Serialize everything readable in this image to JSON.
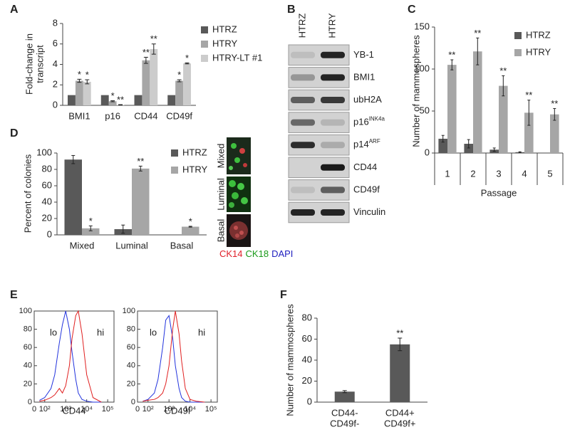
{
  "panel_labels": [
    "A",
    "B",
    "C",
    "D",
    "E",
    "F"
  ],
  "chart_data": [
    {
      "type": "bar",
      "y_label": [
        "Fold-change in",
        "transcript"
      ],
      "categories": [
        "BMI1",
        "p16",
        "CD44",
        "CD49f"
      ],
      "series": [
        {
          "name": "HTRZ",
          "color": "#595959",
          "values": [
            1,
            1,
            1,
            1
          ]
        },
        {
          "name": "HTRY",
          "color": "#a6a6a6",
          "values": [
            2.4,
            0.4,
            4.4,
            2.4
          ],
          "errors": [
            0.15,
            0.05,
            0.3,
            0.1
          ],
          "significance": [
            "*",
            "*",
            "**",
            "*"
          ]
        },
        {
          "name": "HTRY-LT #1",
          "color": "#cccccc",
          "values": [
            2.3,
            0.05,
            5.5,
            4.1
          ],
          "errors": [
            0.2,
            0.02,
            0.5,
            0.05
          ],
          "significance": [
            "*",
            "**",
            "**",
            "*"
          ]
        }
      ],
      "ylim": [
        0,
        8
      ],
      "yticks": [
        0,
        2,
        4,
        6,
        8
      ],
      "legend": "right"
    },
    {
      "type": "bar",
      "y_label": "Number of mammospheres",
      "x_label": "Passage",
      "categories": [
        "1",
        "2",
        "3",
        "4",
        "5"
      ],
      "series": [
        {
          "name": "HTRZ",
          "color": "#595959",
          "values": [
            17,
            11,
            4,
            1,
            null
          ],
          "errors": [
            4,
            5,
            2,
            0.5,
            null
          ]
        },
        {
          "name": "HTRY",
          "color": "#a6a6a6",
          "values": [
            105,
            121,
            80,
            48,
            46
          ],
          "errors": [
            6,
            16,
            12,
            15,
            7
          ],
          "significance": [
            "**",
            "**",
            "**",
            "**",
            "**"
          ]
        }
      ],
      "ylim": [
        0,
        150
      ],
      "yticks": [
        0,
        50,
        100,
        150
      ],
      "legend": "upper right"
    },
    {
      "type": "bar",
      "y_label": "Percent of colonies",
      "categories": [
        "Mixed",
        "Luminal",
        "Basal"
      ],
      "series": [
        {
          "name": "HTRZ",
          "color": "#595959",
          "values": [
            92,
            7,
            null
          ],
          "errors": [
            5,
            5,
            null
          ]
        },
        {
          "name": "HTRY",
          "color": "#a6a6a6",
          "values": [
            8,
            81,
            10
          ],
          "errors": [
            3,
            3,
            0.5
          ],
          "significance": [
            "*",
            "**",
            "*"
          ]
        }
      ],
      "ylim": [
        0,
        100
      ],
      "yticks": [
        0,
        20,
        40,
        60,
        80,
        100
      ],
      "legend": "upper right"
    },
    {
      "type": "bar",
      "y_label": "Number of mammospheres",
      "categories": [
        [
          "CD44-",
          "CD49f-"
        ],
        [
          "CD44+",
          "CD49f+"
        ]
      ],
      "values": [
        10,
        55
      ],
      "errors": [
        1,
        6
      ],
      "significance": [
        null,
        "**"
      ],
      "color": "#595959",
      "ylim": [
        0,
        80
      ],
      "yticks": [
        0,
        20,
        40,
        60,
        80
      ]
    },
    {
      "type": "line",
      "x_label": "CD44",
      "xscale": "symlog",
      "linthresh": 100,
      "x": [
        50,
        100,
        200,
        300,
        500,
        700,
        1000,
        1500,
        2000,
        3000,
        4000,
        6000,
        10000,
        20000,
        50000
      ],
      "series": [
        {
          "name": "lo",
          "color": "#2233dd",
          "values": [
            2,
            5,
            15,
            30,
            65,
            85,
            100,
            80,
            55,
            25,
            10,
            3,
            1,
            0,
            0
          ]
        },
        {
          "name": "hi",
          "color": "#e02020",
          "values": [
            1,
            2,
            5,
            8,
            15,
            10,
            18,
            40,
            70,
            95,
            100,
            75,
            30,
            5,
            0
          ]
        }
      ],
      "xlim": [
        0,
        200000
      ],
      "xticks": [
        {
          "value": 0,
          "label": "0"
        },
        {
          "value": 100,
          "label": "10²"
        },
        {
          "value": 1000,
          "label": "10³"
        },
        {
          "value": 10000,
          "label": "10⁴"
        },
        {
          "value": 100000,
          "label": "10⁵"
        }
      ],
      "ylim": [
        0,
        100
      ],
      "yticks": [
        0,
        20,
        40,
        60,
        80,
        100
      ]
    },
    {
      "type": "line",
      "x_label": "CD49f",
      "xscale": "symlog",
      "linthresh": 100,
      "x": [
        50,
        100,
        200,
        300,
        500,
        700,
        1000,
        1500,
        2000,
        3000,
        4000,
        6000,
        10000,
        20000,
        50000
      ],
      "series": [
        {
          "name": "lo",
          "color": "#2233dd",
          "values": [
            1,
            3,
            10,
            25,
            60,
            90,
            95,
            70,
            40,
            15,
            5,
            1,
            0,
            0,
            0
          ]
        },
        {
          "name": "hi",
          "color": "#e02020",
          "values": [
            1,
            2,
            3,
            5,
            10,
            20,
            40,
            80,
            100,
            75,
            45,
            15,
            3,
            1,
            0
          ]
        }
      ],
      "xlim": [
        0,
        200000
      ],
      "xticks": [
        {
          "value": 0,
          "label": "0"
        },
        {
          "value": 100,
          "label": "10²"
        },
        {
          "value": 1000,
          "label": "10³"
        },
        {
          "value": 10000,
          "label": "10⁴"
        },
        {
          "value": 100000,
          "label": "10⁵"
        }
      ],
      "ylim": [
        0,
        100
      ],
      "yticks": [
        0,
        20,
        40,
        60,
        80,
        100
      ]
    }
  ],
  "blot": {
    "lanes": [
      "HTRZ",
      "HTRY"
    ],
    "proteins": [
      {
        "name": "YB-1"
      },
      {
        "name": "BMI1"
      },
      {
        "name": "ubH2A"
      },
      {
        "name": "p16",
        "sup": "INK4a"
      },
      {
        "name": "p14",
        "sup": "ARF"
      },
      {
        "name": "CD44"
      },
      {
        "name": "CD49f"
      },
      {
        "name": "Vinculin"
      }
    ]
  },
  "micrograph": {
    "rows": [
      "Mixed",
      "Luminal",
      "Basal"
    ],
    "stains": [
      {
        "name": "CK14",
        "color": "#e0202a"
      },
      {
        "name": "CK18",
        "color": "#1a9a1a"
      },
      {
        "name": "DAPI",
        "color": "#2020c0"
      }
    ]
  }
}
